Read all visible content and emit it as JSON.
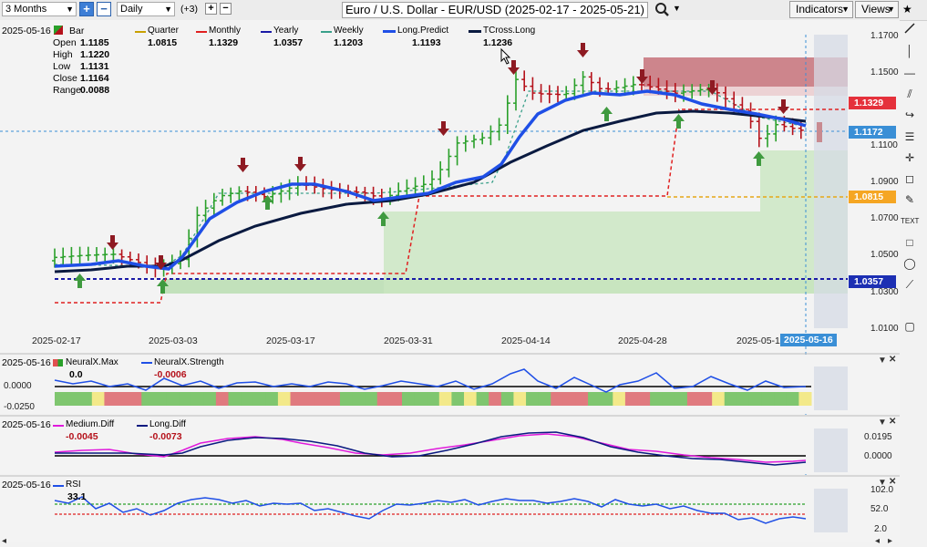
{
  "toolbar": {
    "range": "3 Months",
    "interval": "Daily",
    "plus_count": "(+3)",
    "title": "Euro / U.S. Dollar - EUR/USD (2025-02-17 - 2025-05-21)",
    "indicators_label": "Indicators",
    "views_label": "Views"
  },
  "legend": {
    "date": "2025-05-16",
    "bar_label": "Bar",
    "ohlc": [
      {
        "k": "Open",
        "v": "1.1185"
      },
      {
        "k": "High",
        "v": "1.1220"
      },
      {
        "k": "Low",
        "v": "1.1131"
      },
      {
        "k": "Close",
        "v": "1.1164"
      },
      {
        "k": "Range",
        "v": "0.0088"
      }
    ],
    "items": [
      {
        "name": "Quarter",
        "value": "1.0815",
        "color": "#c8a000"
      },
      {
        "name": "Monthly",
        "value": "1.1329",
        "color": "#e02020"
      },
      {
        "name": "Yearly",
        "value": "1.0357",
        "color": "#1a1aa6"
      },
      {
        "name": "Weekly",
        "value": "1.1203",
        "color": "#3aa08a"
      },
      {
        "name": "Long.Predict",
        "value": "1.1193",
        "color": "#1f4fe6"
      },
      {
        "name": "TCross.Long",
        "value": "1.1236",
        "color": "#0a1a40"
      }
    ]
  },
  "price_tags": [
    {
      "value": "1.1329",
      "color": "#e5313b"
    },
    {
      "value": "1.1172",
      "color": "#3a8fd6"
    },
    {
      "value": "1.0815",
      "color": "#f5a623"
    },
    {
      "value": "1.0357",
      "color": "#1c2fb3"
    }
  ],
  "price_axis": [
    "1.1700",
    "1.1500",
    "1.1100",
    "1.0900",
    "1.0700",
    "1.0500",
    "1.0300",
    "1.0100"
  ],
  "date_axis": [
    "2025-02-17",
    "2025-03-03",
    "2025-03-17",
    "2025-03-31",
    "2025-04-14",
    "2025-04-28",
    "2025-05-1"
  ],
  "cursor_date": "2025-05-16",
  "neuralx": {
    "date": "2025-05-16",
    "max_name": "NeuralX.Max",
    "max_value": "0.0",
    "strength_name": "NeuralX.Strength",
    "strength_value": "-0.0006",
    "axis": [
      "0.0000",
      "-0.0250"
    ]
  },
  "diff": {
    "date": "2025-05-16",
    "medium_name": "Medium.Diff",
    "medium_value": "-0.0045",
    "long_name": "Long.Diff",
    "long_value": "-0.0073",
    "axis": [
      "0.0195",
      "0.0000"
    ]
  },
  "rsi": {
    "date": "2025-05-16",
    "name": "RSI",
    "value": "33.1",
    "axis": [
      "102.0",
      "52.0",
      "2.0"
    ]
  },
  "colors": {
    "up_bar": "#2aa02a",
    "down_bar": "#b5121b",
    "long_predict": "#1f4fe6",
    "tcross": "#0a1a40"
  }
}
